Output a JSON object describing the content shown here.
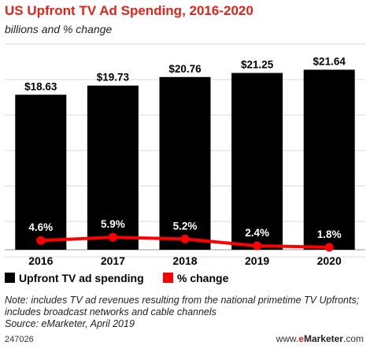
{
  "chart_data": {
    "type": "bar",
    "title": "US Upfront TV Ad Spending, 2016-2020",
    "subtitle": "billions and % change",
    "categories": [
      "2016",
      "2017",
      "2018",
      "2019",
      "2020"
    ],
    "series": [
      {
        "name": "Upfront TV ad spending",
        "type": "bar",
        "values": [
          18.63,
          19.73,
          20.76,
          21.25,
          21.64
        ],
        "labels": [
          "$18.63",
          "$19.73",
          "$20.76",
          "$21.25",
          "$21.64"
        ],
        "color": "#000000"
      },
      {
        "name": "% change",
        "type": "line",
        "values": [
          4.6,
          5.9,
          5.2,
          2.4,
          1.8
        ],
        "labels": [
          "4.6%",
          "5.9%",
          "5.2%",
          "2.4%",
          "1.8%"
        ],
        "color": "#ff0000"
      }
    ],
    "grid": true,
    "legend_position": "bottom"
  },
  "note": "Note: includes TV ad revenues resulting from the national primetime TV Upfronts; includes broadcast networks and cable channels",
  "source": "Source: eMarketer, April 2019",
  "footer": {
    "id": "247026",
    "brand_prefix": "www.",
    "brand_e": "e",
    "brand_name": "Marketer",
    "brand_suffix": ".com"
  }
}
